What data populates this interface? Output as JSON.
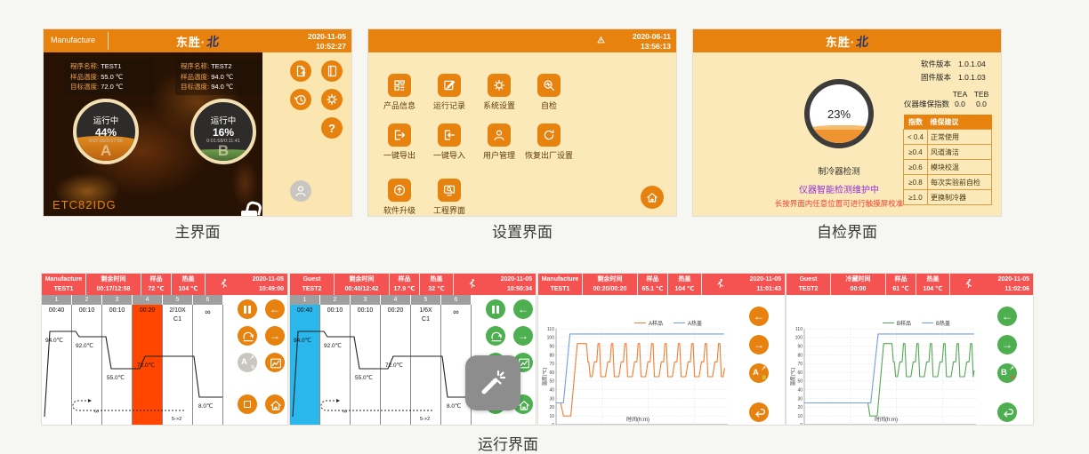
{
  "captions": {
    "main": "主界面",
    "settings": "设置界面",
    "selfcheck": "自检界面",
    "run": "运行界面"
  },
  "brand": {
    "name": "东胜·",
    "mark": "北"
  },
  "main": {
    "user": "Manufacture",
    "date": "2020-11-05",
    "time": "10:52:27",
    "model": "ETC82IDG",
    "help": "?",
    "programs": [
      {
        "name_label": "程序名称:",
        "name": "TEST1",
        "sample_label": "样品温度:",
        "sample": "55.0 ℃",
        "target_label": "目标温度:",
        "target": "72.0 ℃"
      },
      {
        "name_label": "程序名称:",
        "name": "TEST2",
        "sample_label": "样品温度:",
        "sample": "94.0 ℃",
        "target_label": "目标温度:",
        "target": "94.0 ℃"
      }
    ],
    "gauges": [
      {
        "status": "运行中",
        "percent": "44%",
        "timer": "0:07:55/0:17:55",
        "letter": "A"
      },
      {
        "status": "运行中",
        "percent": "16%",
        "timer": "0:01:58/0:11:41",
        "letter": "B"
      }
    ]
  },
  "settings": {
    "date": "2020-06-11",
    "time": "13:56:13",
    "items": [
      {
        "label": "产品信息",
        "icon": "product-info-icon"
      },
      {
        "label": "运行记录",
        "icon": "run-records-icon"
      },
      {
        "label": "系统设置",
        "icon": "system-settings-icon"
      },
      {
        "label": "自检",
        "icon": "self-check-icon"
      },
      {
        "label": "一键导出",
        "icon": "export-icon"
      },
      {
        "label": "一键导入",
        "icon": "import-icon"
      },
      {
        "label": "用户管理",
        "icon": "user-management-icon"
      },
      {
        "label": "恢复出厂设置",
        "icon": "factory-reset-icon"
      },
      {
        "label": "软件升级",
        "icon": "software-upgrade-icon"
      },
      {
        "label": "工程界面",
        "icon": "engineering-ui-icon"
      }
    ]
  },
  "selfcheck": {
    "sw_label": "软件版本",
    "sw": "1.0.1.04",
    "fw_label": "固件版本",
    "fw": "1.0.1.03",
    "col_a": "TEA",
    "col_b": "TEB",
    "index_label": "仪器维保指数",
    "index_a": "0.0",
    "index_b": "0.0",
    "percent": "23%",
    "test_label": "制冷器检测",
    "status": "仪器智能检测维护中",
    "hint": "长按界面内任意位置可进行触摸屏校准",
    "status_color": "#9031d8",
    "hint_color": "#f4402e",
    "table": {
      "headers": [
        "指数",
        "维保建议"
      ],
      "rows": [
        [
          "< 0.4",
          "正常使用"
        ],
        [
          "≥0.4",
          "风道清洁"
        ],
        [
          "≥0.6",
          "模块校温"
        ],
        [
          "≥0.8",
          "每次实验前自检"
        ],
        [
          "≥1.0",
          "更换制冷器"
        ]
      ]
    }
  },
  "runA": {
    "user": "Manufacture",
    "program": "TEST1",
    "remain_label": "剩余时间",
    "remain": "00:17/12:58",
    "sample_label": "样品",
    "sample": "72 ℃",
    "lid_label": "热盖",
    "lid": "104 ℃",
    "date": "2020-11-05",
    "time": "10:49:00",
    "cols": [
      "1",
      "2",
      "3",
      "4",
      "5",
      "6"
    ],
    "steps": {
      "t1": "00:40",
      "t2": "00:10",
      "t3": "00:10",
      "t4": "00:20",
      "cycle": "2/10X",
      "cycle_id": "C1",
      "t6": "∞",
      "temp1": "94.0℃",
      "temp2": "92.0℃",
      "temp3": "55.0℃",
      "temp4": "72.0℃",
      "temp6": "8.0℃",
      "loop": "5->2",
      "loop_inf": "∞"
    }
  },
  "runB": {
    "user": "Guest",
    "program": "TEST2",
    "remain_label": "剩余时间",
    "remain": "00:40/12:42",
    "sample_label": "样品",
    "sample": "17.9 ℃",
    "lid_label": "热盖",
    "lid": "32 ℃",
    "date": "2020-11-05",
    "time": "10:50:34",
    "cols": [
      "1",
      "2",
      "3",
      "4",
      "5",
      "6"
    ],
    "steps": {
      "t1": "00:40",
      "t2": "00:10",
      "t3": "00:10",
      "t4": "00:20",
      "cycle": "1/6X",
      "cycle_id": "C1",
      "t6": "∞",
      "temp1": "94.0℃",
      "temp2": "92.0℃",
      "temp3": "55.0℃",
      "temp4": "72.0℃",
      "temp6": "8.0℃",
      "loop": "5->2",
      "loop_inf": "∞"
    }
  },
  "chartA": {
    "user": "Manufacture",
    "program": "TEST1",
    "remain_label": "剩余时间",
    "remain": "00:20/00:20",
    "sample_label": "样品",
    "sample": "65.1 ℃",
    "lid_label": "热盖",
    "lid": "104 ℃",
    "date": "2020-11-05",
    "time": "11:01:43"
  },
  "chartB": {
    "user": "Guest",
    "program": "TEST2",
    "remain_label": "冷藏时间",
    "remain": "00:00",
    "sample_label": "样品",
    "sample": "61 ℃",
    "lid_label": "热盖",
    "lid": "104 ℃",
    "date": "2020-11-05",
    "time": "11:02:06"
  },
  "chart_data": [
    {
      "type": "line",
      "xlabel": "时间(h:m)",
      "ylabel": "温度(℃)",
      "xlim": [
        0,
        18.6
      ],
      "ylim": [
        0,
        110
      ],
      "grid": true,
      "legend_position": "top",
      "yticks": [
        0,
        10,
        20,
        30,
        40,
        50,
        60,
        70,
        80,
        90,
        100,
        110
      ],
      "xticks": [
        {
          "label": "00:00",
          "x": 0
        },
        {
          "label": "00:05",
          "x": 5
        },
        {
          "label": "00:10",
          "x": 10
        },
        {
          "label": "00:15",
          "x": 15
        }
      ],
      "series": [
        {
          "name": "A样品",
          "color": "#ee7f33",
          "points": [
            [
              0,
              25
            ],
            [
              0.5,
              25
            ],
            [
              0.8,
              10
            ],
            [
              1.6,
              10
            ],
            [
              2.3,
              93
            ],
            [
              3.3,
              93
            ],
            [
              3.45,
              72
            ],
            [
              3.55,
              72
            ],
            [
              3.7,
              55
            ],
            [
              3.9,
              55
            ],
            [
              4.15,
              72
            ],
            [
              4.4,
              72
            ],
            [
              4.55,
              93
            ],
            [
              4.7,
              93
            ],
            [
              4.85,
              55
            ],
            [
              5.35,
              55
            ],
            [
              5.6,
              72
            ],
            [
              5.85,
              72
            ],
            [
              6.0,
              93
            ],
            [
              6.15,
              93
            ],
            [
              6.3,
              55
            ],
            [
              6.8,
              55
            ],
            [
              7.05,
              72
            ],
            [
              7.3,
              72
            ],
            [
              7.45,
              93
            ],
            [
              7.6,
              93
            ],
            [
              7.75,
              55
            ],
            [
              8.25,
              55
            ],
            [
              8.5,
              72
            ],
            [
              8.75,
              72
            ],
            [
              8.9,
              93
            ],
            [
              9.05,
              93
            ],
            [
              9.2,
              55
            ],
            [
              9.7,
              55
            ],
            [
              9.95,
              72
            ],
            [
              10.2,
              72
            ],
            [
              10.35,
              93
            ],
            [
              10.5,
              93
            ],
            [
              10.65,
              55
            ],
            [
              11.15,
              55
            ],
            [
              11.4,
              72
            ],
            [
              11.65,
              72
            ],
            [
              11.8,
              93
            ],
            [
              11.95,
              93
            ],
            [
              12.1,
              55
            ],
            [
              12.6,
              55
            ],
            [
              12.85,
              72
            ],
            [
              13.1,
              72
            ],
            [
              13.25,
              93
            ],
            [
              13.4,
              93
            ],
            [
              13.55,
              55
            ],
            [
              14.05,
              55
            ],
            [
              14.3,
              72
            ],
            [
              14.55,
              72
            ],
            [
              14.7,
              93
            ],
            [
              14.85,
              93
            ],
            [
              15.0,
              55
            ],
            [
              15.5,
              55
            ],
            [
              15.75,
              72
            ],
            [
              16.0,
              72
            ],
            [
              16.15,
              93
            ],
            [
              16.3,
              93
            ],
            [
              16.45,
              55
            ],
            [
              16.95,
              55
            ],
            [
              17.2,
              72
            ],
            [
              17.45,
              72
            ],
            [
              17.6,
              93
            ],
            [
              17.75,
              93
            ],
            [
              17.9,
              55
            ],
            [
              18.1,
              55
            ],
            [
              18.25,
              65
            ]
          ]
        },
        {
          "name": "A热盖",
          "color": "#6f9ee8",
          "points": [
            [
              0,
              25
            ],
            [
              0.8,
              25
            ],
            [
              1.5,
              104
            ],
            [
              18.2,
              104
            ]
          ]
        }
      ]
    },
    {
      "type": "line",
      "xlabel": "时间(h:m)",
      "ylabel": "温度(℃)",
      "xlim": [
        0,
        18.6
      ],
      "ylim": [
        0,
        110
      ],
      "grid": true,
      "legend_position": "top",
      "yticks": [
        0,
        10,
        20,
        30,
        40,
        50,
        60,
        70,
        80,
        90,
        100,
        110
      ],
      "xticks": [
        {
          "label": "00:00",
          "x": 0
        },
        {
          "label": "00:05",
          "x": 5
        },
        {
          "label": "00:10",
          "x": 10
        },
        {
          "label": "00:15",
          "x": 15
        }
      ],
      "series": [
        {
          "name": "B样品",
          "color": "#55a855",
          "points": [
            [
              0,
              25
            ],
            [
              6.9,
              25
            ],
            [
              7.1,
              10
            ],
            [
              7.9,
              10
            ],
            [
              8.6,
              93
            ],
            [
              9.5,
              93
            ],
            [
              9.65,
              72
            ],
            [
              9.75,
              72
            ],
            [
              9.9,
              55
            ],
            [
              10.1,
              55
            ],
            [
              10.35,
              72
            ],
            [
              10.6,
              72
            ],
            [
              10.75,
              93
            ],
            [
              10.9,
              93
            ],
            [
              11.05,
              55
            ],
            [
              11.55,
              55
            ],
            [
              11.8,
              72
            ],
            [
              12.05,
              72
            ],
            [
              12.2,
              93
            ],
            [
              12.35,
              93
            ],
            [
              12.5,
              55
            ],
            [
              13.0,
              55
            ],
            [
              13.25,
              72
            ],
            [
              13.5,
              72
            ],
            [
              13.65,
              93
            ],
            [
              13.8,
              93
            ],
            [
              13.95,
              55
            ],
            [
              14.45,
              55
            ],
            [
              14.7,
              72
            ],
            [
              14.95,
              72
            ],
            [
              15.1,
              93
            ],
            [
              15.25,
              93
            ],
            [
              15.4,
              55
            ],
            [
              15.9,
              55
            ],
            [
              16.15,
              72
            ],
            [
              16.4,
              72
            ],
            [
              16.55,
              93
            ],
            [
              16.7,
              93
            ],
            [
              16.85,
              55
            ],
            [
              17.35,
              55
            ],
            [
              17.6,
              72
            ],
            [
              17.85,
              72
            ],
            [
              18.0,
              93
            ],
            [
              18.15,
              93
            ],
            [
              18.3,
              55
            ],
            [
              18.4,
              62
            ]
          ]
        },
        {
          "name": "B热盖",
          "color": "#6f9ee8",
          "points": [
            [
              0,
              25
            ],
            [
              7.2,
              25
            ],
            [
              8.0,
              104
            ],
            [
              18.4,
              104
            ]
          ]
        }
      ]
    }
  ]
}
